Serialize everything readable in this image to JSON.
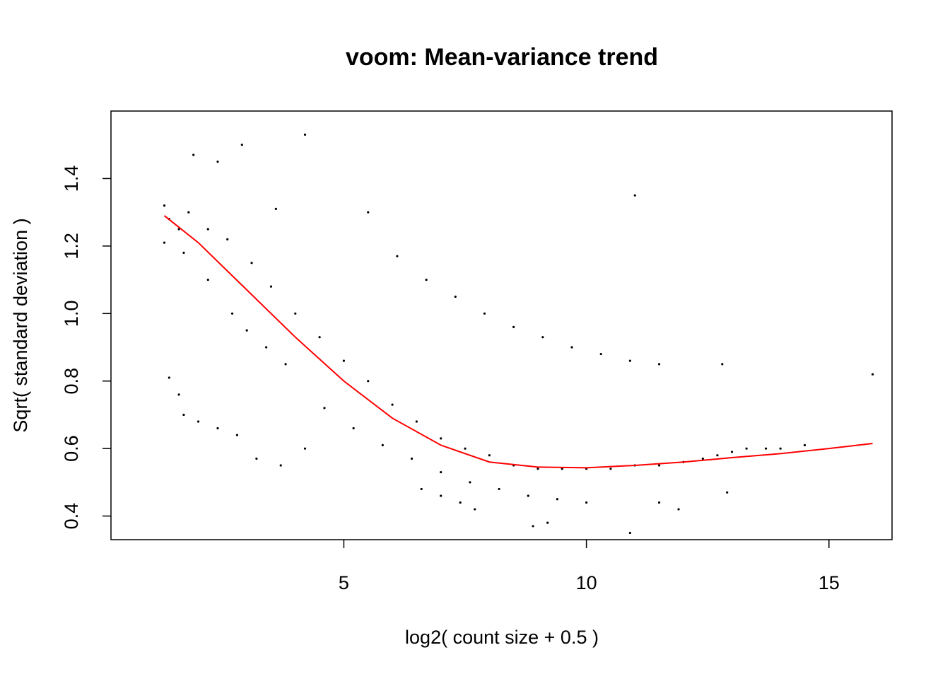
{
  "chart_data": {
    "type": "scatter",
    "title": "voom: Mean-variance trend",
    "xlabel": "log2( count size + 0.5 )",
    "ylabel": "Sqrt( standard deviation )",
    "xlim": [
      0.2,
      16.3
    ],
    "ylim": [
      0.33,
      1.6
    ],
    "x_ticks": [
      5,
      10,
      15
    ],
    "y_ticks": [
      0.4,
      0.6,
      0.8,
      1.0,
      1.2,
      1.4
    ],
    "y_tick_labels": [
      "0.4",
      "0.6",
      "0.8",
      "1.0",
      "1.2",
      "1.4"
    ],
    "point_color": "#000000",
    "trend_color": "#ff0000",
    "grid": false,
    "series": [
      {
        "kind": "points",
        "x": [
          4.2,
          2.9,
          11.0,
          1.9,
          2.4,
          3.6,
          1.3,
          1.4,
          1.6,
          1.7,
          2.0,
          2.4,
          2.8,
          3.2,
          3.7,
          4.2,
          1.8,
          2.2,
          2.6,
          3.1,
          3.5,
          4.0,
          4.5,
          5.0,
          5.5,
          6.0,
          6.5,
          7.0,
          7.5,
          8.0,
          8.5,
          9.0,
          9.5,
          10.0,
          10.5,
          11.0,
          11.5,
          12.0,
          12.4,
          12.7,
          13.0,
          13.3,
          13.7,
          14.0,
          14.5,
          15.9,
          12.8,
          12.9,
          11.9,
          11.5,
          10.9,
          9.2,
          8.9,
          7.7,
          7.4,
          7.0,
          6.6,
          5.5,
          6.1,
          6.7,
          7.3,
          7.9,
          8.5,
          9.1,
          9.7,
          10.3,
          10.9,
          11.5,
          4.6,
          5.2,
          5.8,
          6.4,
          7.0,
          7.6,
          8.2,
          8.8,
          9.4,
          10.0,
          3.0,
          3.4,
          3.8,
          2.7,
          2.2,
          1.7,
          1.6,
          1.4,
          1.3
        ],
        "y": [
          1.53,
          1.5,
          1.35,
          1.47,
          1.45,
          1.31,
          1.21,
          0.81,
          0.76,
          0.7,
          0.68,
          0.66,
          0.64,
          0.57,
          0.55,
          0.6,
          1.3,
          1.25,
          1.22,
          1.15,
          1.08,
          1.0,
          0.93,
          0.86,
          0.8,
          0.73,
          0.68,
          0.63,
          0.6,
          0.58,
          0.55,
          0.54,
          0.54,
          0.54,
          0.54,
          0.55,
          0.55,
          0.56,
          0.57,
          0.58,
          0.59,
          0.6,
          0.6,
          0.6,
          0.61,
          0.82,
          0.85,
          0.47,
          0.42,
          0.44,
          0.35,
          0.38,
          0.37,
          0.42,
          0.44,
          0.46,
          0.48,
          1.3,
          1.17,
          1.1,
          1.05,
          1.0,
          0.96,
          0.93,
          0.9,
          0.88,
          0.86,
          0.85,
          0.72,
          0.66,
          0.61,
          0.57,
          0.53,
          0.5,
          0.48,
          0.46,
          0.45,
          0.44,
          0.95,
          0.9,
          0.85,
          1.0,
          1.1,
          1.18,
          1.25,
          1.28,
          1.32
        ]
      },
      {
        "kind": "trend",
        "x": [
          1.3,
          2.0,
          3.0,
          4.0,
          5.0,
          6.0,
          7.0,
          8.0,
          9.0,
          10.0,
          11.0,
          12.0,
          13.0,
          14.0,
          15.0,
          15.9
        ],
        "y": [
          1.29,
          1.21,
          1.07,
          0.93,
          0.8,
          0.69,
          0.61,
          0.56,
          0.545,
          0.543,
          0.55,
          0.56,
          0.573,
          0.585,
          0.6,
          0.615
        ]
      }
    ]
  }
}
